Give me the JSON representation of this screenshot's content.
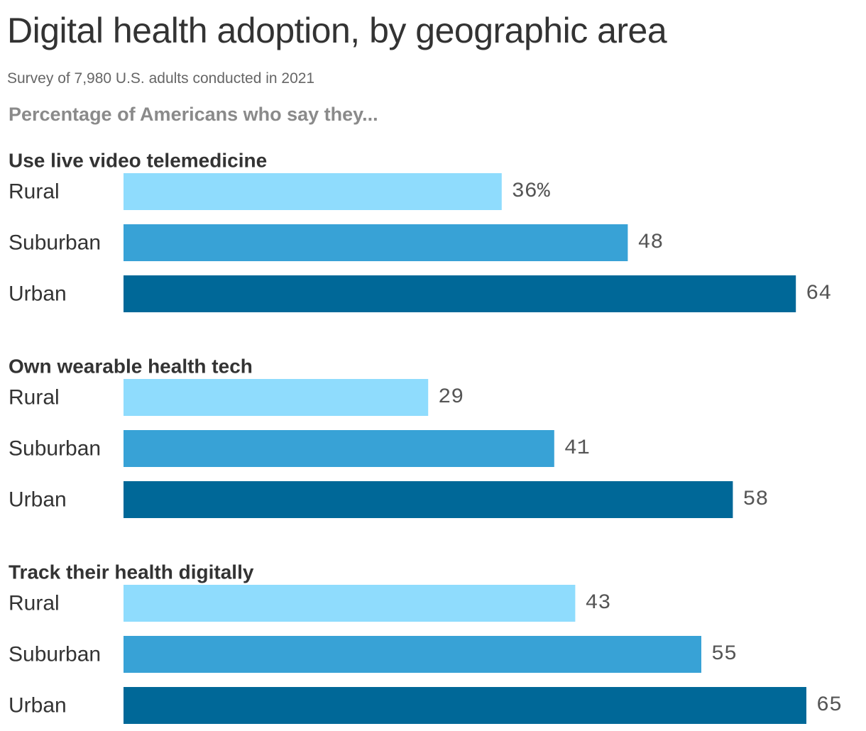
{
  "chart_data": {
    "type": "bar",
    "orientation": "horizontal",
    "title": "Digital health adoption, by geographic area",
    "subtitle": "Survey of 7,980 U.S. adults conducted in 2021",
    "header": "Percentage of Americans who say they...",
    "categories": [
      "Rural",
      "Suburban",
      "Urban"
    ],
    "colors": [
      "#8fdcfd",
      "#38a2d6",
      "#006898"
    ],
    "value_suffix_first": "%",
    "xlim": [
      0,
      65
    ],
    "groups": [
      {
        "name": "Use live video telemedicine",
        "values": [
          36,
          48,
          64
        ]
      },
      {
        "name": "Own wearable health tech",
        "values": [
          29,
          41,
          58
        ]
      },
      {
        "name": "Track their health digitally",
        "values": [
          43,
          55,
          65
        ]
      }
    ]
  }
}
